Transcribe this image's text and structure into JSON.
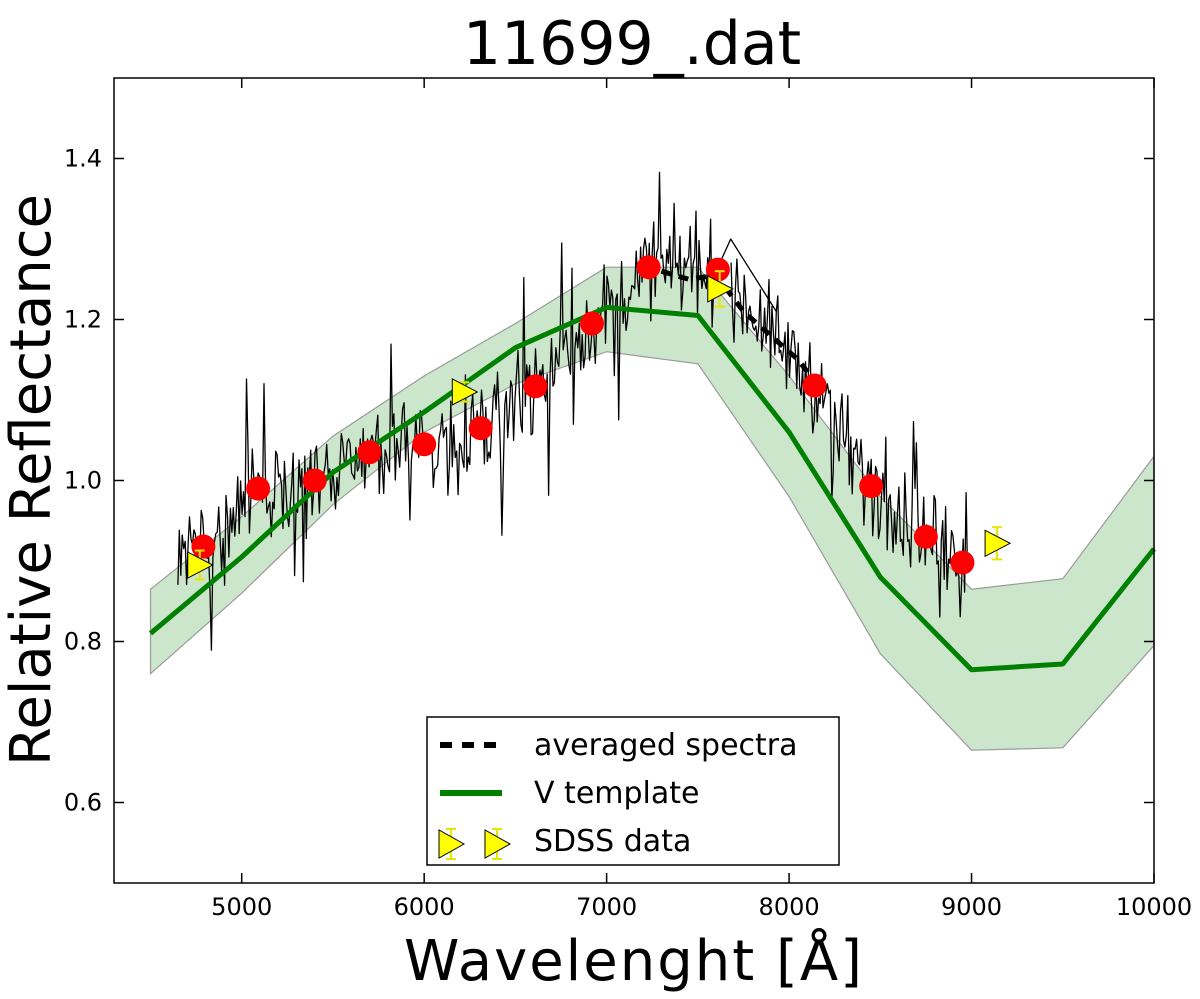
{
  "chart_data": {
    "type": "line",
    "title": "11699_.dat",
    "xlabel": "Wavelenght [Å]",
    "ylabel": "Relative Reflectance",
    "xlim": [
      4300,
      10000
    ],
    "ylim": [
      0.5,
      1.5
    ],
    "xticks": [
      5000,
      6000,
      7000,
      8000,
      9000,
      10000
    ],
    "xtick_labels": [
      "5000",
      "6000",
      "7000",
      "8000",
      "9000",
      "10000"
    ],
    "yticks": [
      0.6,
      0.8,
      1.0,
      1.2,
      1.4
    ],
    "ytick_labels": [
      "0.6",
      "0.8",
      "1.0",
      "1.2",
      "1.4"
    ],
    "grid": false,
    "legend_position": "bottom-center",
    "series": [
      {
        "name": "raw spectrum",
        "kind": "noisy-line",
        "color": "#000000",
        "range": [
          4650,
          8980
        ],
        "sample_step": 8,
        "noise": 0.05,
        "gap": [
          7620,
          7680
        ]
      },
      {
        "name": "averaged spectra",
        "kind": "dashed-line",
        "color": "#000000",
        "x": [
          7300,
          7450,
          7600,
          7750,
          7900,
          8050,
          8150
        ],
        "y": [
          1.26,
          1.25,
          1.255,
          1.21,
          1.18,
          1.15,
          1.12
        ]
      },
      {
        "name": "V template",
        "kind": "line",
        "color": "#008000",
        "x": [
          4500,
          5000,
          5500,
          6000,
          6500,
          7000,
          7500,
          8000,
          8500,
          9000,
          9500,
          10000
        ],
        "y": [
          0.81,
          0.905,
          1.01,
          1.085,
          1.165,
          1.215,
          1.205,
          1.06,
          0.88,
          0.765,
          0.772,
          0.915
        ]
      },
      {
        "name": "V template range",
        "kind": "band",
        "color": "#008000",
        "x": [
          4500,
          5000,
          5500,
          6000,
          6500,
          7000,
          7500,
          8000,
          8500,
          9000,
          9500,
          10000
        ],
        "lower": [
          0.76,
          0.86,
          0.97,
          1.06,
          1.12,
          1.16,
          1.145,
          0.98,
          0.785,
          0.665,
          0.668,
          0.795
        ],
        "upper": [
          0.865,
          0.955,
          1.055,
          1.13,
          1.195,
          1.265,
          1.265,
          1.13,
          0.98,
          0.865,
          0.878,
          1.03
        ]
      },
      {
        "name": "red points",
        "kind": "scatter",
        "color": "#ff0000",
        "x": [
          4790,
          5090,
          5400,
          5700,
          6000,
          6310,
          6610,
          6920,
          7230,
          7610,
          8140,
          8450,
          8750,
          8950
        ],
        "y": [
          0.918,
          0.99,
          1.0,
          1.035,
          1.045,
          1.065,
          1.117,
          1.195,
          1.265,
          1.262,
          1.118,
          0.993,
          0.93,
          0.898
        ]
      },
      {
        "name": "SDSS data",
        "kind": "triangle-errorbar",
        "color": "#ffff00",
        "x": [
          4770,
          6220,
          7620,
          9140
        ],
        "y": [
          0.895,
          1.11,
          1.238,
          0.922
        ],
        "err": [
          0.018,
          0.012,
          0.022,
          0.02
        ]
      }
    ],
    "legend": [
      {
        "label": "averaged spectra",
        "style": "dashed",
        "color": "#000000"
      },
      {
        "label": "V template",
        "style": "line",
        "color": "#008000"
      },
      {
        "label": "SDSS data",
        "style": "triangle",
        "color": "#ffff00"
      }
    ]
  }
}
